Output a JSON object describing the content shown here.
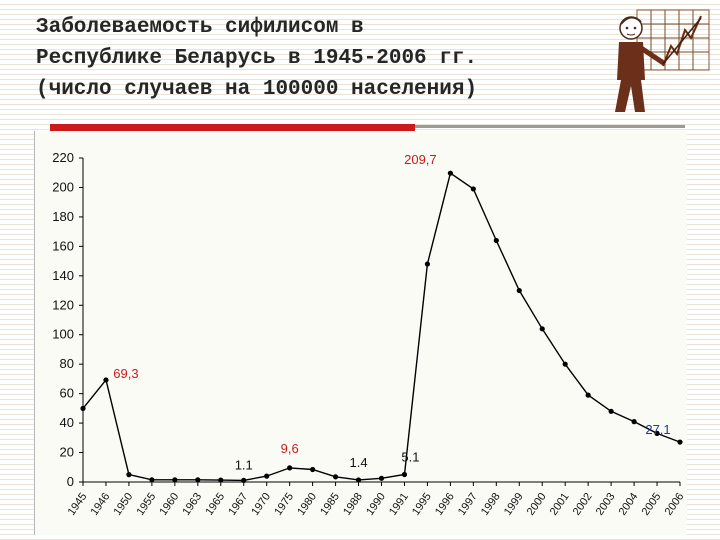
{
  "header": {
    "title_lines": [
      "Заболеваемость сифилисом в",
      "Республике Беларусь в 1945-2006 гг.",
      "(число случаев на 100000 населения)"
    ]
  },
  "colors": {
    "accent_red": "#cc1a1a",
    "annotation_red": "#cc1a1a",
    "annotation_blue": "#1f3a9e",
    "annotation_black": "#111111",
    "line": "#000000"
  },
  "chart_data": {
    "type": "line",
    "title": "",
    "xlabel": "",
    "ylabel": "",
    "ylim": [
      0,
      220
    ],
    "yticks": [
      0,
      20,
      40,
      60,
      80,
      100,
      120,
      140,
      160,
      180,
      200,
      220
    ],
    "grid": false,
    "legend": "none",
    "categories": [
      "1945",
      "1946",
      "1950",
      "1955",
      "1960",
      "1963",
      "1965",
      "1967",
      "1970",
      "1975",
      "1980",
      "1985",
      "1988",
      "1990",
      "1991",
      "1995",
      "1996",
      "1997",
      "1998",
      "1999",
      "2000",
      "2001",
      "2002",
      "2003",
      "2004",
      "2005",
      "2006"
    ],
    "values": [
      50,
      69.3,
      5,
      1.5,
      1.5,
      1.5,
      1.3,
      1.1,
      4,
      9.6,
      8.5,
      3.5,
      1.4,
      2.5,
      5.1,
      148,
      209.7,
      199,
      164,
      130,
      104,
      80,
      59,
      48,
      41,
      33,
      27.1
    ],
    "annotations": [
      {
        "text": "69,3",
        "index": 1,
        "color": "annotation_red"
      },
      {
        "text": "1.1",
        "index": 7,
        "color": "annotation_black"
      },
      {
        "text": "9,6",
        "index": 9,
        "color": "annotation_red"
      },
      {
        "text": "1.4",
        "index": 12,
        "color": "annotation_black"
      },
      {
        "text": "5.1",
        "index": 14,
        "color": "annotation_black"
      },
      {
        "text": "209,7",
        "index": 16,
        "color": "annotation_red"
      },
      {
        "text": "27,1",
        "index": 26,
        "color": "annotation_blue"
      }
    ]
  }
}
